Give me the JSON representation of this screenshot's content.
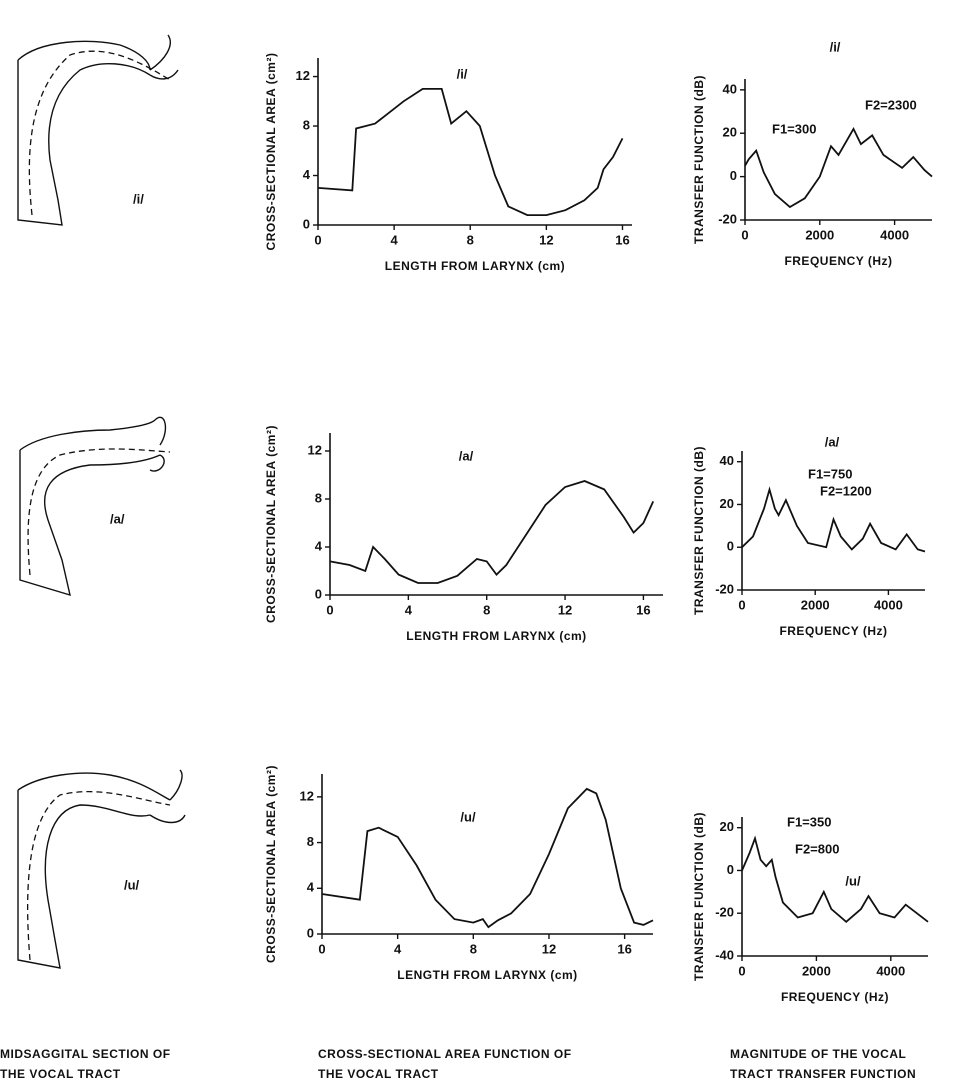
{
  "drawing_labels": [
    "/i/",
    "/a/",
    "/u/"
  ],
  "captions": [
    [
      "MIDSAGGITAL SECTION OF",
      "THE VOCAL TRACT"
    ],
    [
      "CROSS-SECTIONAL AREA FUNCTION OF",
      "THE VOCAL TRACT"
    ],
    [
      "MAGNITUDE OF THE VOCAL",
      "TRACT TRANSFER FUNCTION"
    ]
  ],
  "chart_data": [
    {
      "type": "line",
      "title": "/i/",
      "x_label": "LENGTH FROM LARYNX (cm)",
      "y_label": "CROSS-SECTIONAL AREA (cm²)",
      "color": "#111111",
      "x": [
        0,
        1.8,
        2,
        3,
        4.5,
        5.5,
        6.5,
        7,
        7.8,
        8.5,
        9.3,
        10,
        11,
        12,
        13,
        14,
        14.7,
        15,
        15.5,
        16
      ],
      "values": [
        3,
        2.8,
        7.8,
        8.2,
        10,
        11,
        11,
        8.2,
        9.2,
        8,
        4,
        1.5,
        0.8,
        0.8,
        1.2,
        2,
        3,
        4.5,
        5.5,
        7
      ],
      "xlim": [
        0,
        16.5
      ],
      "ylim": [
        0,
        13.5
      ],
      "xticks": [
        0,
        4,
        8,
        12,
        16
      ],
      "yticks": [
        0,
        4,
        8,
        12
      ]
    },
    {
      "type": "line",
      "title": "/i/",
      "x_label": "FREQUENCY (Hz)",
      "y_label": "TRANSFER FUNCTION (dB)",
      "color": "#111111",
      "annotations": [
        "F1=300",
        "F2=2300"
      ],
      "x": [
        0,
        100,
        300,
        500,
        800,
        1200,
        1600,
        2000,
        2300,
        2500,
        2700,
        2900,
        3100,
        3400,
        3700,
        4200,
        4500,
        4800,
        5000
      ],
      "values": [
        5,
        8,
        12,
        2,
        -8,
        -14,
        -10,
        0,
        14,
        10,
        16,
        22,
        15,
        19,
        10,
        4,
        9,
        3,
        0
      ],
      "xlim": [
        0,
        5000
      ],
      "ylim": [
        -20,
        45
      ],
      "xticks": [
        0,
        2000,
        4000
      ],
      "yticks": [
        -20,
        0,
        20,
        40
      ]
    },
    {
      "type": "line",
      "title": "/a/",
      "x_label": "LENGTH FROM LARYNX (cm)",
      "y_label": "CROSS-SECTIONAL AREA (cm²)",
      "color": "#111111",
      "x": [
        0,
        1,
        1.8,
        2.2,
        2.8,
        3.5,
        4.5,
        5.5,
        6.5,
        7.5,
        8,
        8.5,
        9,
        10,
        11,
        12,
        13,
        14,
        15,
        15.5,
        16,
        16.5
      ],
      "values": [
        2.8,
        2.5,
        2,
        4,
        3,
        1.7,
        1,
        1,
        1.6,
        3,
        2.8,
        1.7,
        2.5,
        5,
        7.5,
        9,
        9.5,
        8.8,
        6.5,
        5.2,
        6,
        7.8
      ],
      "xlim": [
        0,
        17
      ],
      "ylim": [
        0,
        13.5
      ],
      "xticks": [
        0,
        4,
        8,
        12,
        16
      ],
      "yticks": [
        0,
        4,
        8,
        12
      ]
    },
    {
      "type": "line",
      "title": "/a/",
      "x_label": "FREQUENCY (Hz)",
      "y_label": "TRANSFER FUNCTION (dB)",
      "color": "#111111",
      "annotations": [
        "F1=750",
        "F2=1200"
      ],
      "x": [
        0,
        300,
        600,
        750,
        900,
        1000,
        1200,
        1500,
        1800,
        2300,
        2500,
        2700,
        3000,
        3300,
        3500,
        3800,
        4200,
        4500,
        4800,
        5000
      ],
      "values": [
        0,
        5,
        18,
        27,
        18,
        15,
        22,
        10,
        2,
        0,
        13,
        5,
        -1,
        4,
        11,
        2,
        -1,
        6,
        -1,
        -2
      ],
      "xlim": [
        0,
        5000
      ],
      "ylim": [
        -20,
        45
      ],
      "xticks": [
        0,
        2000,
        4000
      ],
      "yticks": [
        -20,
        0,
        20,
        40
      ]
    },
    {
      "type": "line",
      "title": "/u/",
      "x_label": "LENGTH FROM LARYNX (cm)",
      "y_label": "CROSS-SECTIONAL AREA (cm²)",
      "color": "#111111",
      "x": [
        0,
        2,
        2.4,
        3,
        4,
        5,
        6,
        7,
        8,
        8.5,
        8.8,
        9.3,
        10,
        11,
        12,
        13,
        14,
        14.5,
        15,
        15.8,
        16.5,
        17,
        17.5
      ],
      "values": [
        3.5,
        3,
        9,
        9.3,
        8.5,
        6,
        3,
        1.3,
        1,
        1.3,
        0.6,
        1.2,
        1.8,
        3.5,
        7,
        11,
        12.7,
        12.3,
        10,
        4,
        1,
        0.8,
        1.2
      ],
      "xlim": [
        0,
        17.5
      ],
      "ylim": [
        0,
        14
      ],
      "xticks": [
        0,
        4,
        8,
        12,
        16
      ],
      "yticks": [
        0,
        4,
        8,
        12
      ]
    },
    {
      "type": "line",
      "title": "/u/",
      "x_label": "FREQUENCY (Hz)",
      "y_label": "TRANSFER FUNCTION (dB)",
      "color": "#111111",
      "annotations": [
        "F1=350",
        "F2=800"
      ],
      "x": [
        0,
        200,
        350,
        500,
        650,
        800,
        900,
        1100,
        1500,
        1900,
        2200,
        2400,
        2800,
        3200,
        3400,
        3700,
        4100,
        4400,
        4700,
        5000
      ],
      "values": [
        0,
        8,
        15,
        5,
        2,
        5,
        -3,
        -15,
        -22,
        -20,
        -10,
        -18,
        -24,
        -18,
        -12,
        -20,
        -22,
        -16,
        -20,
        -24
      ],
      "xlim": [
        0,
        5000
      ],
      "ylim": [
        -40,
        25
      ],
      "xticks": [
        0,
        2000,
        4000
      ],
      "yticks": [
        -40,
        -20,
        0,
        20
      ]
    }
  ]
}
